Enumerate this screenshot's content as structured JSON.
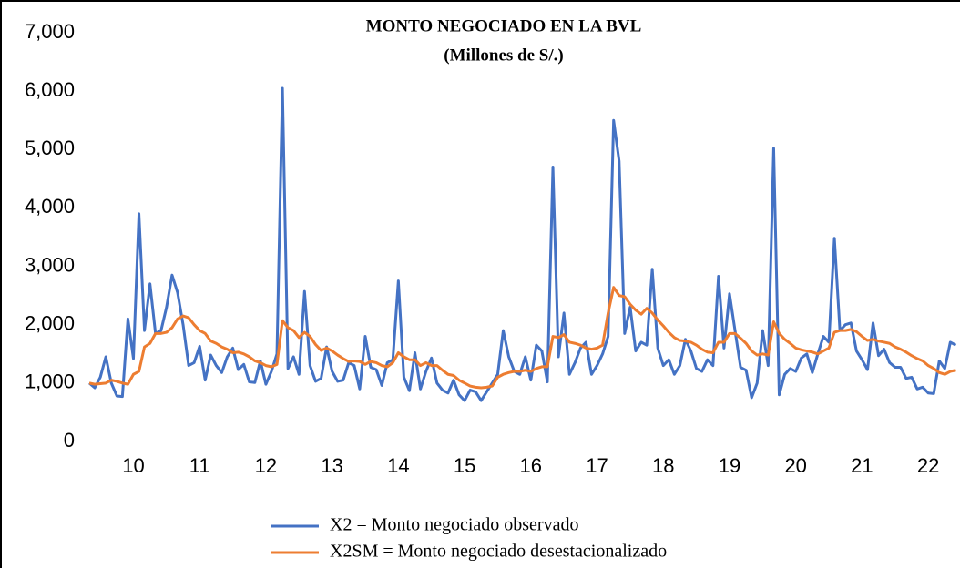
{
  "chart_data": {
    "type": "line",
    "title": "MONTO NEGOCIADO EN LA BVL",
    "subtitle": "(Millones de S/.)",
    "categories": [
      null,
      null,
      null,
      null,
      null,
      null,
      null,
      null,
      "10",
      null,
      null,
      null,
      null,
      null,
      null,
      null,
      null,
      null,
      null,
      null,
      "11",
      null,
      null,
      null,
      null,
      null,
      null,
      null,
      null,
      null,
      null,
      null,
      "12",
      null,
      null,
      null,
      null,
      null,
      null,
      null,
      null,
      null,
      null,
      null,
      "13",
      null,
      null,
      null,
      null,
      null,
      null,
      null,
      null,
      null,
      null,
      null,
      "14",
      null,
      null,
      null,
      null,
      null,
      null,
      null,
      null,
      null,
      null,
      null,
      "15",
      null,
      null,
      null,
      null,
      null,
      null,
      null,
      null,
      null,
      null,
      null,
      "16",
      null,
      null,
      null,
      null,
      null,
      null,
      null,
      null,
      null,
      null,
      null,
      "17",
      null,
      null,
      null,
      null,
      null,
      null,
      null,
      null,
      null,
      null,
      null,
      "18",
      null,
      null,
      null,
      null,
      null,
      null,
      null,
      null,
      null,
      null,
      null,
      "19",
      null,
      null,
      null,
      null,
      null,
      null,
      null,
      null,
      null,
      null,
      null,
      "20",
      null,
      null,
      null,
      null,
      null,
      null,
      null,
      null,
      null,
      null,
      null,
      "21",
      null,
      null,
      null,
      null,
      null,
      null,
      null,
      null,
      null,
      null,
      null,
      "22",
      null,
      null,
      null,
      null,
      null
    ],
    "series": [
      {
        "name": "X2 = Monto negociado observado",
        "color": "#4472c4",
        "values": [
          1000,
          920,
          1100,
          1450,
          1000,
          780,
          770,
          2100,
          1420,
          3900,
          1900,
          2700,
          1850,
          1900,
          2300,
          2850,
          2550,
          2000,
          1300,
          1350,
          1630,
          1050,
          1480,
          1300,
          1180,
          1450,
          1600,
          1230,
          1320,
          1020,
          1010,
          1380,
          980,
          1200,
          1500,
          6050,
          1250,
          1450,
          1150,
          2570,
          1300,
          1030,
          1080,
          1620,
          1200,
          1030,
          1050,
          1350,
          1300,
          900,
          1800,
          1270,
          1230,
          960,
          1350,
          1400,
          2750,
          1100,
          870,
          1520,
          900,
          1200,
          1430,
          1000,
          880,
          830,
          1050,
          800,
          700,
          880,
          850,
          700,
          850,
          1000,
          1150,
          1900,
          1450,
          1200,
          1150,
          1450,
          1050,
          1650,
          1550,
          1020,
          4700,
          1450,
          2200,
          1150,
          1350,
          1600,
          1700,
          1150,
          1300,
          1500,
          1800,
          5500,
          4800,
          1850,
          2300,
          1550,
          1700,
          1650,
          2950,
          1600,
          1300,
          1400,
          1150,
          1300,
          1750,
          1550,
          1250,
          1200,
          1400,
          1300,
          2830,
          1600,
          2530,
          1900,
          1270,
          1220,
          750,
          1000,
          1900,
          1300,
          5020,
          800,
          1150,
          1250,
          1200,
          1430,
          1500,
          1180,
          1500,
          1800,
          1700,
          3480,
          1900,
          2000,
          2030,
          1550,
          1400,
          1230,
          2030,
          1470,
          1580,
          1350,
          1270,
          1270,
          1080,
          1100,
          900,
          930,
          830,
          820,
          1380,
          1250,
          1700,
          1650
        ]
      },
      {
        "name": "X2SM = Monto negociado desestacionalizado",
        "color": "#ed7d31",
        "values": [
          1000,
          980,
          990,
          1000,
          1050,
          1030,
          1000,
          980,
          1150,
          1200,
          1620,
          1680,
          1850,
          1850,
          1870,
          1950,
          2100,
          2150,
          2120,
          2000,
          1900,
          1850,
          1720,
          1680,
          1620,
          1580,
          1520,
          1530,
          1500,
          1450,
          1380,
          1350,
          1300,
          1280,
          1320,
          2070,
          1950,
          1900,
          1780,
          1870,
          1800,
          1660,
          1560,
          1600,
          1550,
          1480,
          1420,
          1370,
          1380,
          1370,
          1320,
          1370,
          1350,
          1300,
          1280,
          1350,
          1520,
          1450,
          1400,
          1400,
          1300,
          1350,
          1300,
          1300,
          1220,
          1150,
          1130,
          1050,
          1000,
          950,
          930,
          920,
          930,
          950,
          1100,
          1150,
          1180,
          1200,
          1200,
          1220,
          1200,
          1250,
          1280,
          1280,
          1800,
          1780,
          1830,
          1700,
          1680,
          1650,
          1600,
          1580,
          1600,
          1650,
          2200,
          2640,
          2500,
          2480,
          2350,
          2250,
          2180,
          2280,
          2200,
          2080,
          1980,
          1870,
          1780,
          1730,
          1720,
          1700,
          1650,
          1580,
          1530,
          1520,
          1700,
          1700,
          1850,
          1850,
          1770,
          1680,
          1550,
          1480,
          1500,
          1480,
          2050,
          1850,
          1750,
          1680,
          1600,
          1570,
          1550,
          1530,
          1500,
          1550,
          1600,
          1870,
          1900,
          1900,
          1920,
          1880,
          1800,
          1730,
          1750,
          1720,
          1700,
          1680,
          1620,
          1580,
          1530,
          1470,
          1420,
          1380,
          1300,
          1250,
          1180,
          1150,
          1200,
          1220
        ]
      }
    ],
    "ylim": [
      0,
      7000
    ],
    "yticks": [
      0,
      {
        "value": 1000,
        "label": "1,000"
      },
      {
        "value": 2000,
        "label": "2,000"
      },
      {
        "value": 3000,
        "label": "3,000"
      },
      {
        "value": 4000,
        "label": "4,000"
      },
      {
        "value": 5000,
        "label": "5,000"
      },
      {
        "value": 6000,
        "label": "6,000"
      },
      {
        "value": 7000,
        "label": "7,000"
      }
    ],
    "legend": "bottom"
  }
}
